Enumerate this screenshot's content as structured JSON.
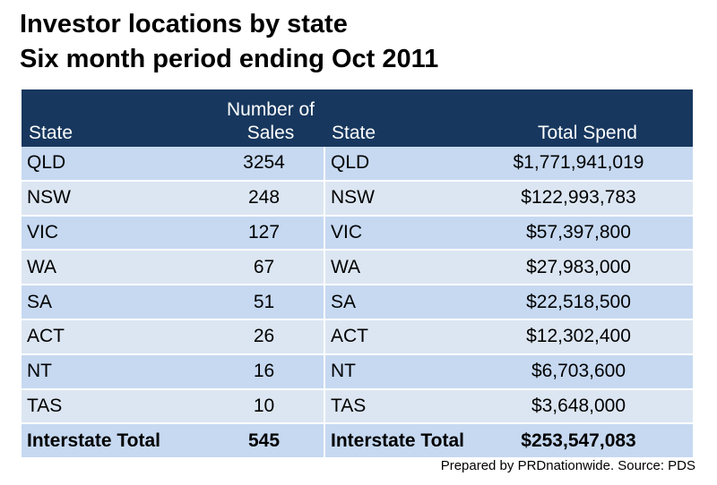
{
  "title": {
    "line1": "Investor locations by state",
    "line2": "Six month period ending Oct 2011"
  },
  "table": {
    "headers": {
      "state_left": "State",
      "sales_line1": "Number of",
      "sales_line2": "Sales",
      "state_right": "State",
      "spend": "Total Spend"
    },
    "rows": [
      {
        "state": "QLD",
        "sales": "3254",
        "state2": "QLD",
        "spend": "$1,771,941,019"
      },
      {
        "state": "NSW",
        "sales": "248",
        "state2": "NSW",
        "spend": "$122,993,783"
      },
      {
        "state": "VIC",
        "sales": "127",
        "state2": "VIC",
        "spend": "$57,397,800"
      },
      {
        "state": "WA",
        "sales": "67",
        "state2": "WA",
        "spend": "$27,983,000"
      },
      {
        "state": "SA",
        "sales": "51",
        "state2": "SA",
        "spend": "$22,518,500"
      },
      {
        "state": "ACT",
        "sales": "26",
        "state2": "ACT",
        "spend": "$12,302,400"
      },
      {
        "state": "NT",
        "sales": "16",
        "state2": "NT",
        "spend": "$6,703,600"
      },
      {
        "state": "TAS",
        "sales": "10",
        "state2": "TAS",
        "spend": "$3,648,000"
      }
    ],
    "total": {
      "state": "Interstate Total",
      "sales": "545",
      "state2": "Interstate Total",
      "spend": "$253,547,083"
    }
  },
  "footer": "Prepared by PRDnationwide. Source: PDS",
  "colors": {
    "header_bg": "#17375e",
    "row_dark": "#c6d9f1",
    "row_light": "#dce6f2"
  }
}
